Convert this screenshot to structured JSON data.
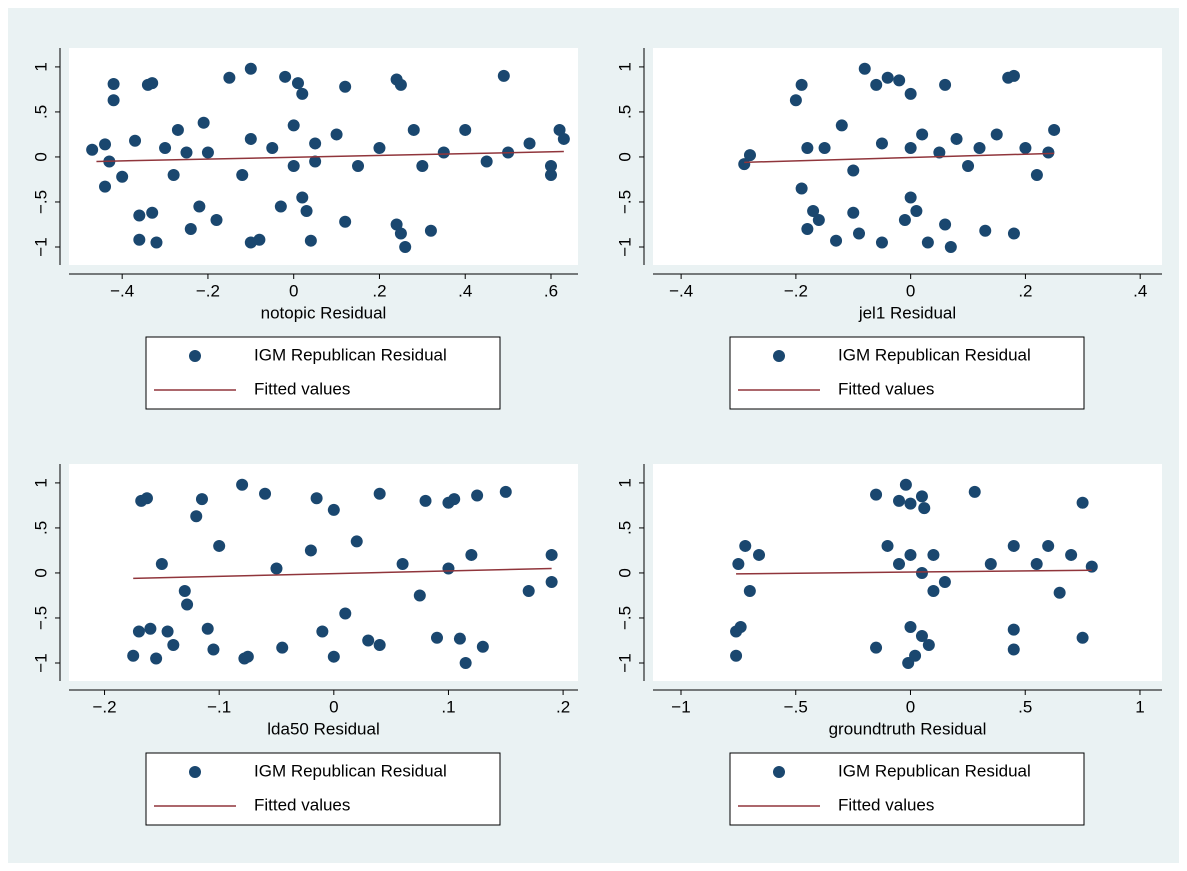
{
  "chart_data": [
    {
      "type": "scatter",
      "x_label": "notopic Residual",
      "xlim": [
        -0.524,
        0.663
      ],
      "ylim": [
        -1.2,
        1.21
      ],
      "xticks": [
        {
          "value": -0.4,
          "label": "−.4"
        },
        {
          "value": -0.2,
          "label": "−.2"
        },
        0,
        {
          "value": 0.2,
          "label": ".2"
        },
        {
          "value": 0.4,
          "label": ".4"
        },
        {
          "value": 0.6,
          "label": ".6"
        }
      ],
      "yticks": [
        {
          "value": -1,
          "label": "−1"
        },
        {
          "value": -0.5,
          "label": "−.5"
        },
        0,
        {
          "value": 0.5,
          "label": ".5"
        },
        1
      ],
      "series": [
        {
          "name": "IGM Republican Residual",
          "color": "#1a476f",
          "x": [
            -0.47,
            -0.44,
            -0.44,
            -0.43,
            -0.42,
            -0.42,
            -0.4,
            -0.37,
            -0.36,
            -0.36,
            -0.34,
            -0.33,
            -0.32,
            -0.33,
            -0.3,
            -0.28,
            -0.27,
            -0.25,
            -0.24,
            -0.22,
            -0.21,
            -0.18,
            -0.15,
            -0.12,
            -0.1,
            -0.1,
            -0.08,
            -0.05,
            -0.03,
            -0.02,
            0.0,
            0.0,
            0.01,
            0.02,
            0.02,
            0.03,
            0.04,
            0.05,
            0.1,
            0.12,
            0.12,
            0.15,
            0.2,
            0.24,
            0.25,
            0.24,
            0.25,
            0.26,
            0.28,
            0.32,
            0.35,
            0.4,
            0.45,
            0.49,
            0.5,
            0.55,
            0.6,
            0.62,
            0.63,
            0.6,
            -0.2,
            -0.1,
            0.05,
            0.3
          ],
          "values": [
            0.08,
            0.14,
            -0.33,
            -0.05,
            0.81,
            0.63,
            -0.22,
            0.18,
            -0.65,
            -0.92,
            0.8,
            0.82,
            -0.95,
            -0.62,
            0.1,
            -0.2,
            0.3,
            0.05,
            -0.8,
            -0.55,
            0.38,
            -0.7,
            0.88,
            -0.2,
            0.98,
            -0.95,
            -0.92,
            0.1,
            -0.55,
            0.89,
            0.35,
            -0.1,
            0.82,
            0.7,
            -0.45,
            -0.6,
            -0.93,
            0.15,
            0.25,
            0.78,
            -0.72,
            -0.1,
            0.1,
            0.86,
            0.8,
            -0.75,
            -0.85,
            -1.0,
            0.3,
            -0.82,
            0.05,
            0.3,
            -0.05,
            0.9,
            0.05,
            0.15,
            -0.2,
            0.3,
            0.2,
            -0.1,
            0.05,
            0.2,
            -0.05,
            -0.1
          ]
        },
        {
          "name": "Fitted values",
          "type": "line",
          "color": "#90353b",
          "x": [
            -0.46,
            0.63
          ],
          "values": [
            -0.05,
            0.06
          ]
        }
      ]
    },
    {
      "type": "scatter",
      "x_label": "jel1 Residual",
      "xlim": [
        -0.449,
        0.438
      ],
      "ylim": [
        -1.2,
        1.21
      ],
      "xticks": [
        {
          "value": -0.4,
          "label": "−.4"
        },
        {
          "value": -0.2,
          "label": "−.2"
        },
        0,
        {
          "value": 0.2,
          "label": ".2"
        },
        {
          "value": 0.4,
          "label": ".4"
        }
      ],
      "yticks": [
        {
          "value": -1,
          "label": "−1"
        },
        {
          "value": -0.5,
          "label": "−.5"
        },
        0,
        {
          "value": 0.5,
          "label": ".5"
        },
        1
      ],
      "series": [
        {
          "name": "IGM Republican Residual",
          "color": "#1a476f",
          "x": [
            -0.29,
            -0.28,
            -0.2,
            -0.19,
            -0.19,
            -0.18,
            -0.17,
            -0.16,
            -0.15,
            -0.13,
            -0.12,
            -0.1,
            -0.09,
            -0.08,
            -0.06,
            -0.05,
            -0.04,
            -0.02,
            0.0,
            -0.01,
            0.0,
            0.01,
            0.02,
            0.03,
            0.05,
            0.06,
            0.06,
            0.07,
            0.08,
            0.1,
            0.13,
            0.15,
            0.17,
            0.18,
            0.18,
            0.2,
            0.22,
            0.25,
            0.24,
            -0.18,
            -0.1,
            -0.05,
            0.0,
            0.12
          ],
          "values": [
            -0.08,
            0.02,
            0.63,
            0.8,
            -0.35,
            -0.8,
            -0.6,
            -0.7,
            0.1,
            -0.93,
            0.35,
            -0.62,
            -0.85,
            0.98,
            0.8,
            -0.95,
            0.88,
            0.85,
            0.7,
            -0.7,
            -0.45,
            -0.6,
            0.25,
            -0.95,
            0.05,
            0.8,
            -0.75,
            -1.0,
            0.2,
            -0.1,
            -0.82,
            0.25,
            0.88,
            0.9,
            -0.85,
            0.1,
            -0.2,
            0.3,
            0.05,
            0.1,
            -0.15,
            0.15,
            0.1,
            0.1
          ]
        },
        {
          "name": "Fitted values",
          "type": "line",
          "color": "#90353b",
          "x": [
            -0.29,
            0.25
          ],
          "values": [
            -0.06,
            0.04
          ]
        }
      ]
    },
    {
      "type": "scatter",
      "x_label": "lda50 Residual",
      "xlim": [
        -0.231,
        0.213
      ],
      "ylim": [
        -1.2,
        1.21
      ],
      "xticks": [
        {
          "value": -0.2,
          "label": "−.2"
        },
        {
          "value": -0.1,
          "label": "−.1"
        },
        0,
        {
          "value": 0.1,
          "label": ".1"
        },
        {
          "value": 0.2,
          "label": ".2"
        }
      ],
      "yticks": [
        {
          "value": -1,
          "label": "−1"
        },
        {
          "value": -0.5,
          "label": "−.5"
        },
        0,
        {
          "value": 0.5,
          "label": ".5"
        },
        1
      ],
      "series": [
        {
          "name": "IGM Republican Residual",
          "color": "#1a476f",
          "x": [
            -0.175,
            -0.17,
            -0.168,
            -0.163,
            -0.16,
            -0.155,
            -0.15,
            -0.145,
            -0.14,
            -0.13,
            -0.128,
            -0.12,
            -0.115,
            -0.11,
            -0.105,
            -0.1,
            -0.08,
            -0.078,
            -0.075,
            -0.06,
            -0.045,
            -0.02,
            -0.015,
            -0.01,
            0.0,
            0.0,
            0.01,
            0.02,
            0.03,
            0.04,
            0.04,
            0.06,
            0.075,
            0.08,
            0.09,
            0.1,
            0.105,
            0.11,
            0.115,
            0.12,
            0.125,
            0.13,
            0.15,
            0.17,
            0.19,
            0.19,
            -0.05,
            0.1
          ],
          "values": [
            -0.92,
            -0.65,
            0.8,
            0.83,
            -0.62,
            -0.95,
            0.1,
            -0.65,
            -0.8,
            -0.2,
            -0.35,
            0.63,
            0.82,
            -0.62,
            -0.85,
            0.3,
            0.98,
            -0.95,
            -0.93,
            0.88,
            -0.83,
            0.25,
            0.83,
            -0.65,
            0.7,
            -0.93,
            -0.45,
            0.35,
            -0.75,
            0.88,
            -0.8,
            0.1,
            -0.25,
            0.8,
            -0.72,
            0.78,
            0.82,
            -0.73,
            -1.0,
            0.2,
            0.86,
            -0.82,
            0.9,
            -0.2,
            0.2,
            -0.1,
            0.05,
            0.05
          ]
        },
        {
          "name": "Fitted values",
          "type": "line",
          "color": "#90353b",
          "x": [
            -0.175,
            0.19
          ],
          "values": [
            -0.06,
            0.05
          ]
        }
      ]
    },
    {
      "type": "scatter",
      "x_label": "groundtruth Residual",
      "xlim": [
        -1.122,
        1.096
      ],
      "ylim": [
        -1.2,
        1.21
      ],
      "xticks": [
        {
          "value": -1,
          "label": "−1"
        },
        {
          "value": -0.5,
          "label": "−.5"
        },
        0,
        {
          "value": 0.5,
          "label": ".5"
        },
        1
      ],
      "yticks": [
        {
          "value": -1,
          "label": "−1"
        },
        {
          "value": -0.5,
          "label": "−.5"
        },
        0,
        {
          "value": 0.5,
          "label": ".5"
        },
        1
      ],
      "series": [
        {
          "name": "IGM Republican Residual",
          "color": "#1a476f",
          "x": [
            -0.76,
            -0.76,
            -0.75,
            -0.74,
            -0.72,
            -0.7,
            -0.66,
            -0.15,
            -0.15,
            -0.1,
            -0.05,
            -0.02,
            0.0,
            -0.01,
            0.0,
            0.02,
            0.05,
            0.06,
            0.05,
            0.08,
            0.1,
            0.15,
            0.28,
            0.35,
            0.45,
            0.45,
            0.45,
            0.55,
            0.6,
            0.65,
            0.7,
            0.75,
            0.75,
            0.79,
            -0.05,
            0.05,
            0.0,
            0.1
          ],
          "values": [
            -0.65,
            -0.92,
            0.1,
            -0.6,
            0.3,
            -0.2,
            0.2,
            0.87,
            -0.83,
            0.3,
            0.8,
            0.98,
            0.77,
            -1.0,
            -0.6,
            -0.92,
            0.85,
            0.72,
            -0.7,
            -0.8,
            0.2,
            -0.1,
            0.9,
            0.1,
            -0.63,
            -0.85,
            0.3,
            0.1,
            0.3,
            -0.22,
            0.2,
            0.78,
            -0.72,
            0.07,
            0.1,
            0.0,
            0.2,
            -0.2
          ]
        },
        {
          "name": "Fitted values",
          "type": "line",
          "color": "#90353b",
          "x": [
            -0.76,
            0.79
          ],
          "values": [
            -0.01,
            0.03
          ]
        }
      ]
    }
  ]
}
